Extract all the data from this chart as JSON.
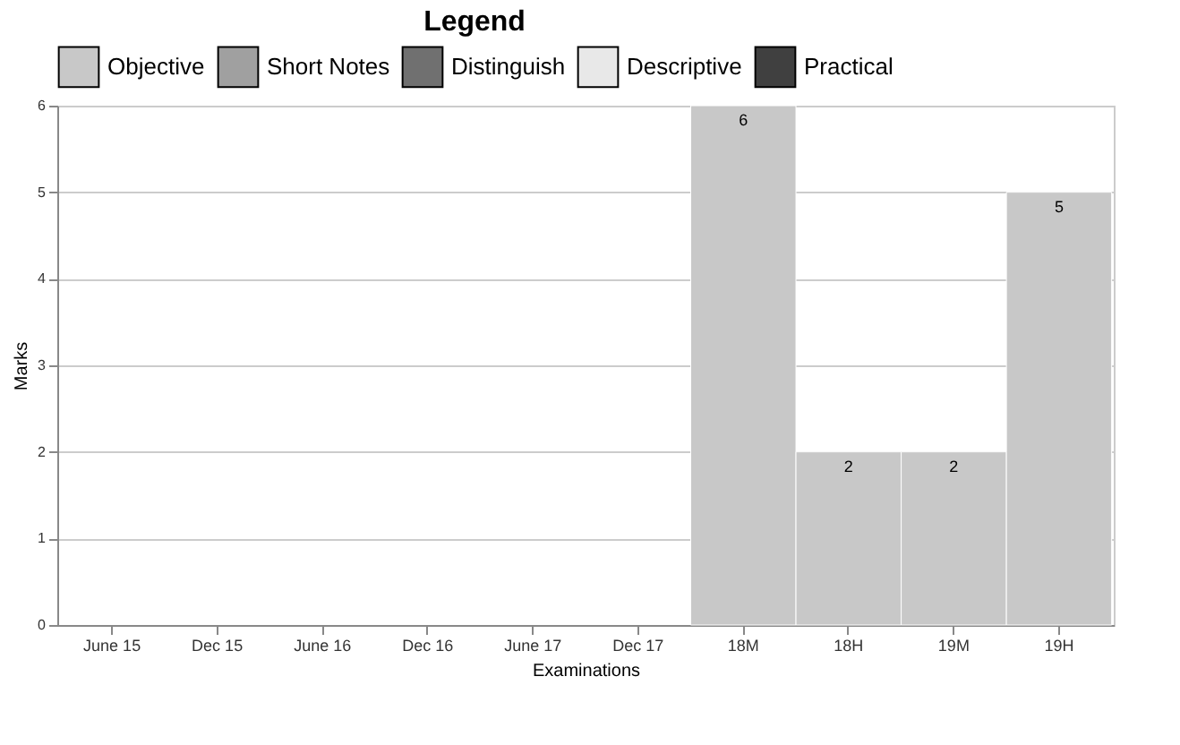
{
  "chart_data": {
    "type": "bar",
    "legend_title": "Legend",
    "xlabel": "Examinations",
    "ylabel": "Marks",
    "categories": [
      "June 15",
      "Dec 15",
      "June 16",
      "Dec 16",
      "June 17",
      "Dec 17",
      "18M",
      "18H",
      "19M",
      "19H"
    ],
    "series": [
      {
        "name": "Objective",
        "color": "#c8c8c8",
        "values": [
          null,
          null,
          null,
          null,
          null,
          null,
          6,
          2,
          2,
          5
        ]
      },
      {
        "name": "Short Notes",
        "color": "#a0a0a0",
        "values": [
          null,
          null,
          null,
          null,
          null,
          null,
          null,
          null,
          null,
          null
        ]
      },
      {
        "name": "Distinguish",
        "color": "#707070",
        "values": [
          null,
          null,
          null,
          null,
          null,
          null,
          null,
          null,
          null,
          null
        ]
      },
      {
        "name": "Descriptive",
        "color": "#e8e8e8",
        "values": [
          null,
          null,
          null,
          null,
          null,
          null,
          null,
          null,
          null,
          null
        ]
      },
      {
        "name": "Practical",
        "color": "#404040",
        "values": [
          null,
          null,
          null,
          null,
          null,
          null,
          null,
          null,
          null,
          null
        ]
      }
    ],
    "ylim": [
      0,
      6
    ],
    "yticks": [
      0,
      1,
      2,
      3,
      4,
      5,
      6
    ],
    "grid": "y",
    "legend": "top",
    "data_labels": true
  }
}
